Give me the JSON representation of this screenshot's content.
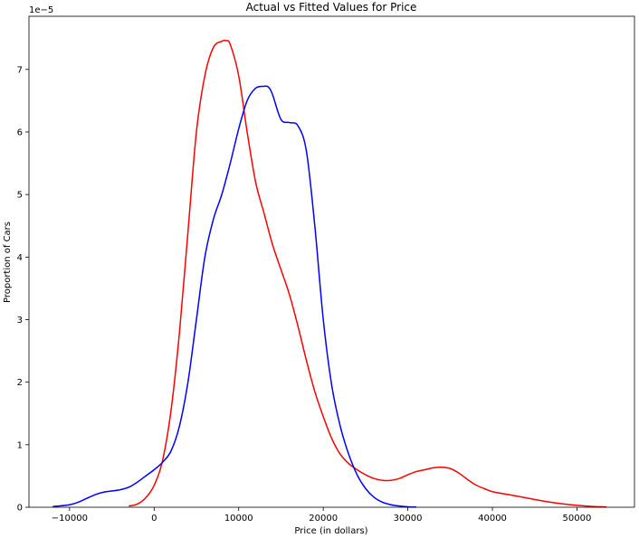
{
  "chart_data": {
    "type": "line",
    "title": "Actual vs Fitted Values for Price",
    "xlabel": "Price (in dollars)",
    "ylabel": "Proportion of Cars",
    "y_offset_label": "1e−5",
    "xlim": [
      -14800,
      56800
    ],
    "ylim": [
      0,
      7.85
    ],
    "x_ticks": [
      -10000,
      0,
      10000,
      20000,
      30000,
      40000,
      50000
    ],
    "x_tick_labels": [
      "−10000",
      "0",
      "10000",
      "20000",
      "30000",
      "40000",
      "50000"
    ],
    "y_ticks": [
      0,
      1,
      2,
      3,
      4,
      5,
      6,
      7
    ],
    "y_tick_labels": [
      "0",
      "1",
      "2",
      "3",
      "4",
      "5",
      "6",
      "7"
    ],
    "grid": false,
    "series": [
      {
        "color": "#ff0000",
        "x": [
          -3000,
          -2000,
          -1000,
          0,
          1000,
          2000,
          3000,
          4000,
          5000,
          6000,
          7000,
          8000,
          8500,
          9000,
          10000,
          11000,
          12000,
          13000,
          14000,
          15000,
          16000,
          17000,
          18000,
          19000,
          20000,
          21000,
          22000,
          23000,
          24000,
          25000,
          26000,
          27000,
          28000,
          29000,
          30000,
          31000,
          32000,
          33000,
          34000,
          35000,
          36000,
          37000,
          38000,
          39000,
          40000,
          42000,
          44000,
          46000,
          48000,
          50000,
          52000,
          53500
        ],
        "values": [
          0.02,
          0.05,
          0.15,
          0.35,
          0.75,
          1.55,
          2.8,
          4.4,
          6.0,
          6.9,
          7.35,
          7.45,
          7.46,
          7.4,
          6.9,
          6.0,
          5.2,
          4.7,
          4.2,
          3.8,
          3.4,
          2.9,
          2.35,
          1.85,
          1.45,
          1.1,
          0.85,
          0.7,
          0.6,
          0.52,
          0.46,
          0.43,
          0.43,
          0.46,
          0.52,
          0.57,
          0.6,
          0.63,
          0.64,
          0.62,
          0.55,
          0.45,
          0.36,
          0.3,
          0.25,
          0.2,
          0.15,
          0.1,
          0.06,
          0.03,
          0.01,
          0.005
        ]
      },
      {
        "color": "#0000ff",
        "x": [
          -12000,
          -10000,
          -9000,
          -8000,
          -7000,
          -6000,
          -5000,
          -4000,
          -3000,
          -2000,
          -1000,
          0,
          1000,
          2000,
          3000,
          4000,
          5000,
          6000,
          7000,
          8000,
          9000,
          10000,
          11000,
          12000,
          13000,
          13500,
          14000,
          15000,
          16000,
          17000,
          18000,
          19000,
          20000,
          21000,
          22000,
          23000,
          24000,
          25000,
          26000,
          27000,
          28000,
          29000,
          30000,
          31000
        ],
        "values": [
          0.01,
          0.04,
          0.08,
          0.14,
          0.2,
          0.24,
          0.26,
          0.28,
          0.32,
          0.4,
          0.5,
          0.6,
          0.72,
          0.9,
          1.3,
          2.0,
          3.0,
          4.0,
          4.6,
          5.0,
          5.5,
          6.05,
          6.5,
          6.7,
          6.73,
          6.72,
          6.6,
          6.2,
          6.15,
          6.1,
          5.7,
          4.5,
          3.0,
          1.95,
          1.3,
          0.85,
          0.52,
          0.3,
          0.16,
          0.08,
          0.04,
          0.02,
          0.008,
          0.003
        ]
      }
    ]
  }
}
